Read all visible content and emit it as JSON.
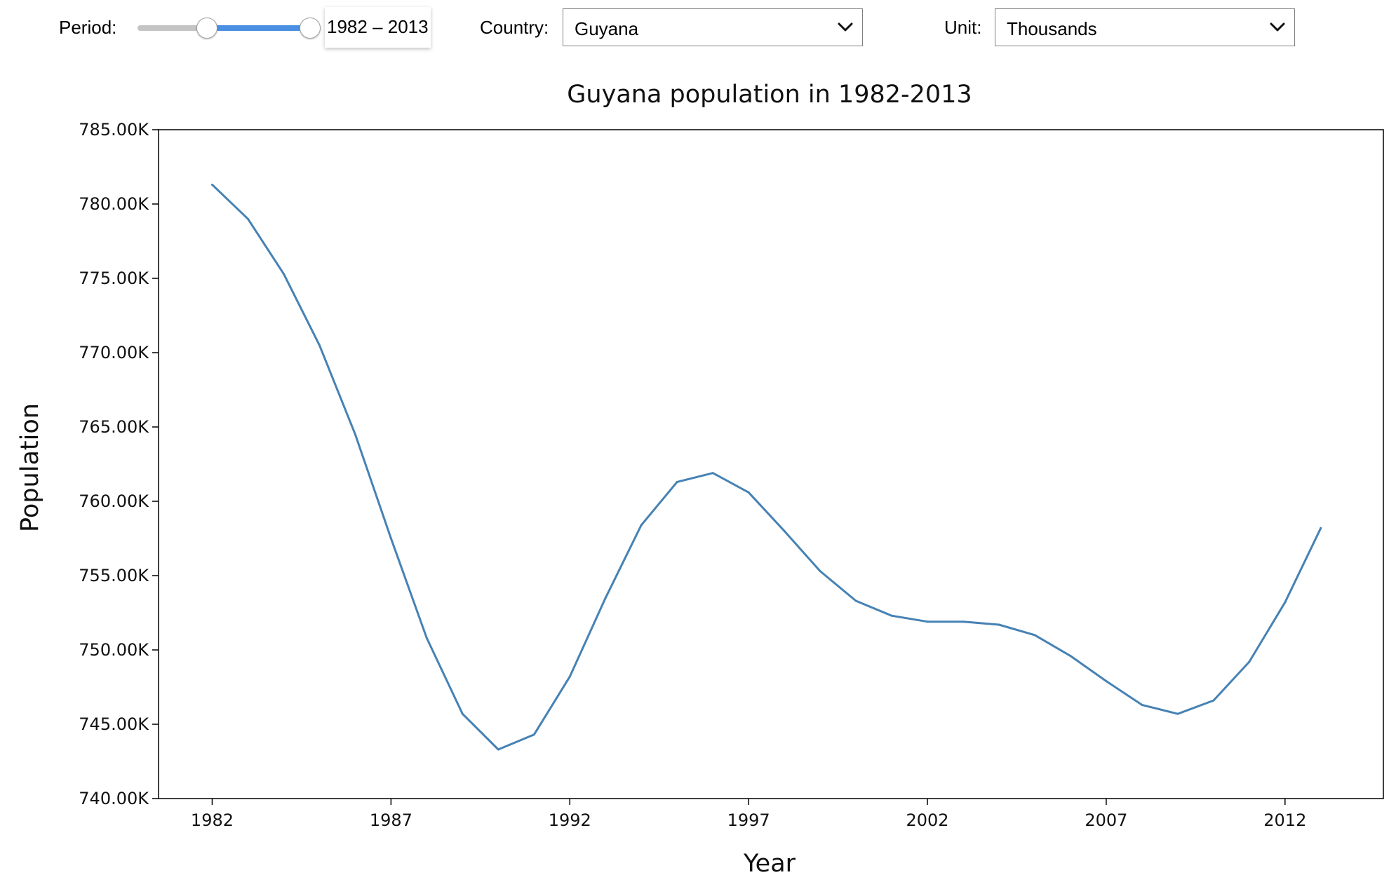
{
  "controls": {
    "period_label": "Period:",
    "period_slider": {
      "start_value": 1982,
      "end_value": 2013,
      "fill_color": "#4a90e2"
    },
    "period_readout": "1982 – 2013",
    "country_label": "Country:",
    "country_value": "Guyana",
    "unit_label": "Unit:",
    "unit_value": "Thousands",
    "chevron_icon": "chevron-down-icon"
  },
  "chart_data": {
    "type": "line",
    "title": "Guyana population in 1982-2013",
    "xlabel": "Year",
    "ylabel": "Population",
    "xlim": [
      1980.5,
      2014.75
    ],
    "ylim": [
      740000,
      785000
    ],
    "xticks": [
      1982,
      1987,
      1992,
      1997,
      2002,
      2007,
      2012
    ],
    "yticks": [
      740000,
      745000,
      750000,
      755000,
      760000,
      765000,
      770000,
      775000,
      780000,
      785000
    ],
    "ytick_labels": [
      "740.00K",
      "745.00K",
      "750.00K",
      "755.00K",
      "760.00K",
      "765.00K",
      "770.00K",
      "775.00K",
      "780.00K",
      "785.00K"
    ],
    "grid": false,
    "line_color": "#4682b4",
    "x": [
      1982,
      1983,
      1984,
      1985,
      1986,
      1987,
      1988,
      1989,
      1990,
      1991,
      1992,
      1993,
      1994,
      1995,
      1996,
      1997,
      1998,
      1999,
      2000,
      2001,
      2002,
      2003,
      2004,
      2005,
      2006,
      2007,
      2008,
      2009,
      2010,
      2011,
      2012,
      2013
    ],
    "y": [
      781300,
      779000,
      775300,
      770500,
      764500,
      757500,
      750800,
      745700,
      743300,
      744300,
      748200,
      753500,
      758400,
      761300,
      761900,
      760600,
      758000,
      755300,
      753300,
      752300,
      751900,
      751900,
      751700,
      751000,
      749600,
      747900,
      746300,
      745700,
      746600,
      749200,
      753200,
      758200
    ]
  }
}
